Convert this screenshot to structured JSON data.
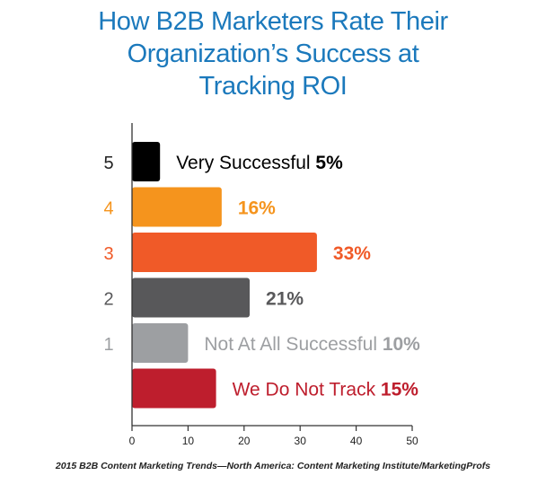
{
  "title_lines": [
    "How B2B Marketers Rate Their",
    "Organization’s Success at",
    "Tracking ROI"
  ],
  "source": "2015 B2B Content Marketing Trends—North America: Content Marketing Institute/MarketingProfs",
  "chart_data": {
    "type": "bar",
    "orientation": "horizontal",
    "title": "How B2B Marketers Rate Their Organization’s Success at Tracking ROI",
    "categories": [
      "5",
      "4",
      "3",
      "2",
      "1",
      ""
    ],
    "values": [
      5,
      16,
      33,
      21,
      10,
      15
    ],
    "bar_labels": [
      "Very Successful",
      "",
      "",
      "",
      "Not At All Successful",
      "We Do Not Track"
    ],
    "value_labels": [
      "5%",
      "16%",
      "33%",
      "21%",
      "10%",
      "15%"
    ],
    "colors": [
      "#000000",
      "#f5941d",
      "#f05a28",
      "#58585a",
      "#9d9fa2",
      "#be1e2d"
    ],
    "category_label_colors": [
      "#222222",
      "#f5941d",
      "#f05a28",
      "#58585a",
      "#9d9fa2",
      "#be1e2d"
    ],
    "text_colors": [
      "#000000",
      "#f5941d",
      "#f05a28",
      "#58585a",
      "#9d9fa2",
      "#be1e2d"
    ],
    "xlim": [
      0,
      50
    ],
    "x_ticks": [
      0,
      10,
      20,
      30,
      40,
      50
    ],
    "xlabel": "",
    "ylabel": "",
    "grid": false,
    "legend": "none"
  }
}
